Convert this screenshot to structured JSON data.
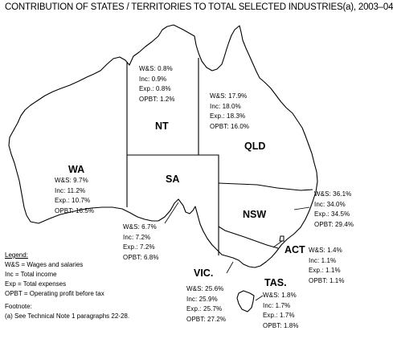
{
  "title": "CONTRIBUTION OF STATES / TERRITORIES TO TOTAL SELECTED INDUSTRIES(a), 2003–04",
  "states": {
    "wa": {
      "name": "WA",
      "ws": "W&S: 9.7%",
      "inc": "Inc: 11.2%",
      "exp": "Exp.: 10.7%",
      "opbt": "OPBT: 16.5%"
    },
    "nt": {
      "name": "NT",
      "ws": "W&S: 0.8%",
      "inc": "Inc: 0.9%",
      "exp": "Exp.: 0.8%",
      "opbt": "OPBT: 1.2%"
    },
    "qld": {
      "name": "QLD",
      "ws": "W&S: 17.9%",
      "inc": "Inc: 18.0%",
      "exp": "Exp.: 18.3%",
      "opbt": "OPBT: 16.0%"
    },
    "sa": {
      "name": "SA",
      "ws": "W&S: 6.7%",
      "inc": "Inc: 7.2%",
      "exp": "Exp.: 7.2%",
      "opbt": "OPBT: 6.8%"
    },
    "nsw": {
      "name": "NSW",
      "ws": "W&S: 36.1%",
      "inc": "Inc: 34.0%",
      "exp": "Exp.: 34.5%",
      "opbt": "OPBT: 29.4%"
    },
    "act": {
      "name": "ACT",
      "ws": "W&S: 1.4%",
      "inc": "Inc: 1.1%",
      "exp": "Exp.: 1.1%",
      "opbt": "OPBT: 1.1%"
    },
    "vic": {
      "name": "VIC.",
      "ws": "W&S: 25.6%",
      "inc": "Inc: 25.9%",
      "exp": "Exp.: 25.7%",
      "opbt": "OPBT: 27.2%"
    },
    "tas": {
      "name": "TAS.",
      "ws": "W&S: 1.8%",
      "inc": "Inc: 1.7%",
      "exp": "Exp.: 1.7%",
      "opbt": "OPBT: 1.8%"
    }
  },
  "legend": {
    "heading": "Legend:",
    "ws": "W&S = Wages and salaries",
    "inc": "Inc = Total income",
    "exp": "Exp = Total expenses",
    "opbt": "OPBT = Operating profit before tax",
    "footnote_label": "Footnote:",
    "footnote": "(a) See Technical Note 1 paragraphs 22-28."
  }
}
